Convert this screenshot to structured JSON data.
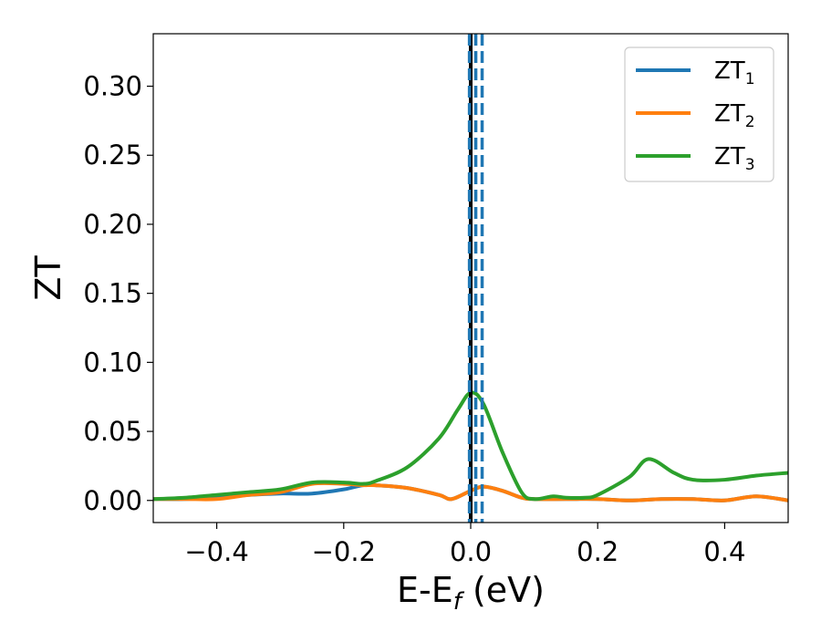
{
  "chart_data": {
    "type": "line",
    "xlabel": "E-E",
    "xlabel_subscript": "f",
    "xlabel_unit": " (eV)",
    "ylabel": "ZT",
    "xlim": [
      -0.5,
      0.5
    ],
    "ylim": [
      -0.016,
      0.338
    ],
    "xticks": [
      -0.4,
      -0.2,
      0.0,
      0.2,
      0.4
    ],
    "xtick_labels": [
      "−0.4",
      "−0.2",
      "0.0",
      "0.2",
      "0.4"
    ],
    "yticks": [
      0.0,
      0.05,
      0.1,
      0.15,
      0.2,
      0.25,
      0.3
    ],
    "ytick_labels": [
      "0.00",
      "0.05",
      "0.10",
      "0.15",
      "0.20",
      "0.25",
      "0.30"
    ],
    "grid": false,
    "legend_position": "top-right",
    "vertical_lines": [
      {
        "x": 0.0,
        "color": "#000000",
        "style": "solid"
      },
      {
        "x": -0.002,
        "color": "#1f77b4",
        "style": "dashed"
      },
      {
        "x": 0.008,
        "color": "#1f77b4",
        "style": "dashed"
      },
      {
        "x": 0.018,
        "color": "#1f77b4",
        "style": "dashed"
      }
    ],
    "series": [
      {
        "name": "ZT",
        "subscript": "1",
        "color": "#1f77b4",
        "x": [
          -0.5,
          -0.45,
          -0.4,
          -0.35,
          -0.3,
          -0.25,
          -0.2,
          -0.17,
          -0.15,
          -0.1,
          -0.05,
          -0.03,
          0.0,
          0.02,
          0.05,
          0.08,
          0.1,
          0.15,
          0.2,
          0.25,
          0.3,
          0.35,
          0.4,
          0.45,
          0.5
        ],
        "y": [
          0.001,
          0.001,
          0.002,
          0.004,
          0.005,
          0.005,
          0.008,
          0.011,
          0.011,
          0.009,
          0.004,
          0.001,
          0.007,
          0.01,
          0.007,
          0.002,
          0.001,
          0.001,
          0.001,
          0.0,
          0.001,
          0.001,
          0.0,
          0.003,
          0.0
        ]
      },
      {
        "name": "ZT",
        "subscript": "2",
        "color": "#ff7f0e",
        "x": [
          -0.5,
          -0.45,
          -0.4,
          -0.35,
          -0.3,
          -0.25,
          -0.2,
          -0.17,
          -0.15,
          -0.1,
          -0.05,
          -0.03,
          0.0,
          0.02,
          0.05,
          0.08,
          0.1,
          0.15,
          0.2,
          0.25,
          0.3,
          0.35,
          0.4,
          0.45,
          0.5
        ],
        "y": [
          0.001,
          0.001,
          0.001,
          0.004,
          0.006,
          0.012,
          0.012,
          0.011,
          0.011,
          0.009,
          0.004,
          0.001,
          0.007,
          0.01,
          0.007,
          0.002,
          0.001,
          0.001,
          0.001,
          0.0,
          0.001,
          0.001,
          0.0,
          0.003,
          0.0
        ]
      },
      {
        "name": "ZT",
        "subscript": "3",
        "color": "#2ca02c",
        "x": [
          -0.5,
          -0.45,
          -0.4,
          -0.35,
          -0.3,
          -0.25,
          -0.2,
          -0.17,
          -0.15,
          -0.1,
          -0.05,
          -0.02,
          0.0,
          0.02,
          0.05,
          0.08,
          0.1,
          0.13,
          0.15,
          0.18,
          0.2,
          0.25,
          0.28,
          0.32,
          0.35,
          0.4,
          0.45,
          0.5
        ],
        "y": [
          0.001,
          0.002,
          0.004,
          0.006,
          0.008,
          0.013,
          0.013,
          0.012,
          0.014,
          0.024,
          0.045,
          0.066,
          0.078,
          0.07,
          0.035,
          0.006,
          0.001,
          0.003,
          0.002,
          0.002,
          0.004,
          0.017,
          0.03,
          0.02,
          0.015,
          0.015,
          0.018,
          0.02
        ]
      }
    ]
  }
}
